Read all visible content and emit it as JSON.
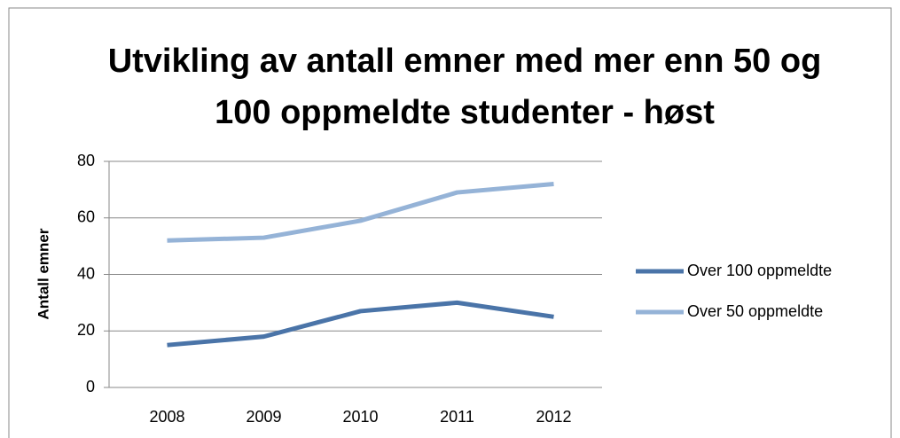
{
  "chart_data": {
    "type": "line",
    "title": "Utvikling av antall emner med mer enn 50 og 100 oppmeldte studenter - høst",
    "ylabel": "Antall emner",
    "categories": [
      "2008",
      "2009",
      "2010",
      "2011",
      "2012"
    ],
    "series": [
      {
        "name": "Over 100 oppmeldte",
        "color": "#4a74a8",
        "values": [
          15,
          18,
          27,
          30,
          25
        ]
      },
      {
        "name": "Over 50 oppmeldte",
        "color": "#95b3d7",
        "values": [
          52,
          53,
          59,
          69,
          72
        ]
      }
    ],
    "ylim": [
      0,
      80
    ],
    "yticks": [
      0,
      20,
      40,
      60,
      80
    ],
    "grid": true,
    "legend": "right"
  }
}
